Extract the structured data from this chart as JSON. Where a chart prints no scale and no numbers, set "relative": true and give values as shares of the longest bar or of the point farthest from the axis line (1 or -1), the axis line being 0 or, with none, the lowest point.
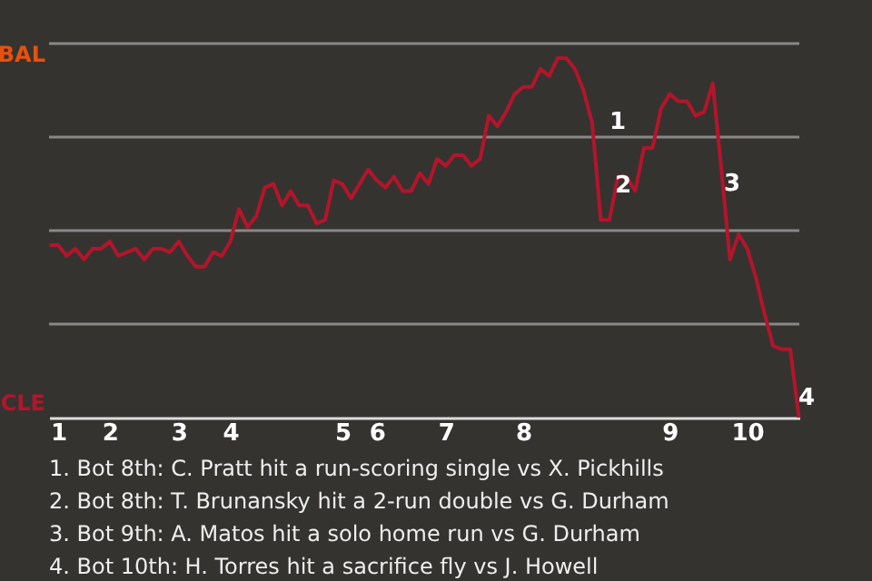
{
  "chart_data": {
    "type": "line",
    "relative": true,
    "categories": [
      null,
      "1",
      null,
      null,
      null,
      null,
      null,
      "2",
      null,
      null,
      null,
      null,
      null,
      null,
      null,
      "3",
      null,
      null,
      null,
      null,
      null,
      "4",
      null,
      null,
      null,
      null,
      null,
      null,
      null,
      null,
      null,
      null,
      null,
      null,
      "5",
      null,
      null,
      null,
      "6",
      null,
      null,
      null,
      null,
      null,
      null,
      null,
      "7",
      null,
      null,
      null,
      null,
      null,
      null,
      null,
      null,
      "8",
      null,
      null,
      null,
      null,
      null,
      null,
      null,
      null,
      null,
      null,
      null,
      null,
      null,
      null,
      null,
      null,
      "9",
      null,
      null,
      null,
      null,
      null,
      null,
      null,
      null,
      "10",
      null,
      null,
      null,
      null,
      null,
      null
    ],
    "series": [
      {
        "color": "#b3152b",
        "values": [
          0.48,
          0.48,
          0.45,
          0.47,
          0.44,
          0.47,
          0.47,
          0.49,
          0.45,
          0.46,
          0.47,
          0.44,
          0.47,
          0.47,
          0.46,
          0.49,
          0.45,
          0.42,
          0.42,
          0.46,
          0.45,
          0.49,
          0.58,
          0.53,
          0.56,
          0.64,
          0.65,
          0.59,
          0.63,
          0.59,
          0.59,
          0.54,
          0.55,
          0.66,
          0.65,
          0.61,
          0.65,
          0.69,
          0.66,
          0.64,
          0.67,
          0.63,
          0.63,
          0.68,
          0.65,
          0.72,
          0.7,
          0.73,
          0.73,
          0.7,
          0.72,
          0.84,
          0.81,
          0.85,
          0.9,
          0.92,
          0.92,
          0.97,
          0.95,
          1,
          1,
          0.97,
          0.91,
          0.82,
          0.55,
          0.55,
          0.67,
          0.67,
          0.63,
          0.75,
          0.75,
          0.86,
          0.9,
          0.88,
          0.88,
          0.84,
          0.85,
          0.93,
          0.69,
          0.44,
          0.51,
          0.47,
          0.39,
          0.29,
          0.2,
          0.19,
          0.19,
          0
        ]
      }
    ],
    "grid": "y",
    "annotations": [
      "1",
      "2",
      "3",
      "4",
      "BAL",
      "CLE",
      "1. Bot 8th: C. Pratt hit a run-scoring single vs X. Pickhills",
      "2. Bot 8th: T. Brunansky hit a 2-run double vs G. Durham",
      "3. Bot 9th: A. Matos hit a solo home run vs G. Durham",
      "4. Bot 10th: H. Torres hit a sacrifice fly vs J. Howell"
    ]
  }
}
